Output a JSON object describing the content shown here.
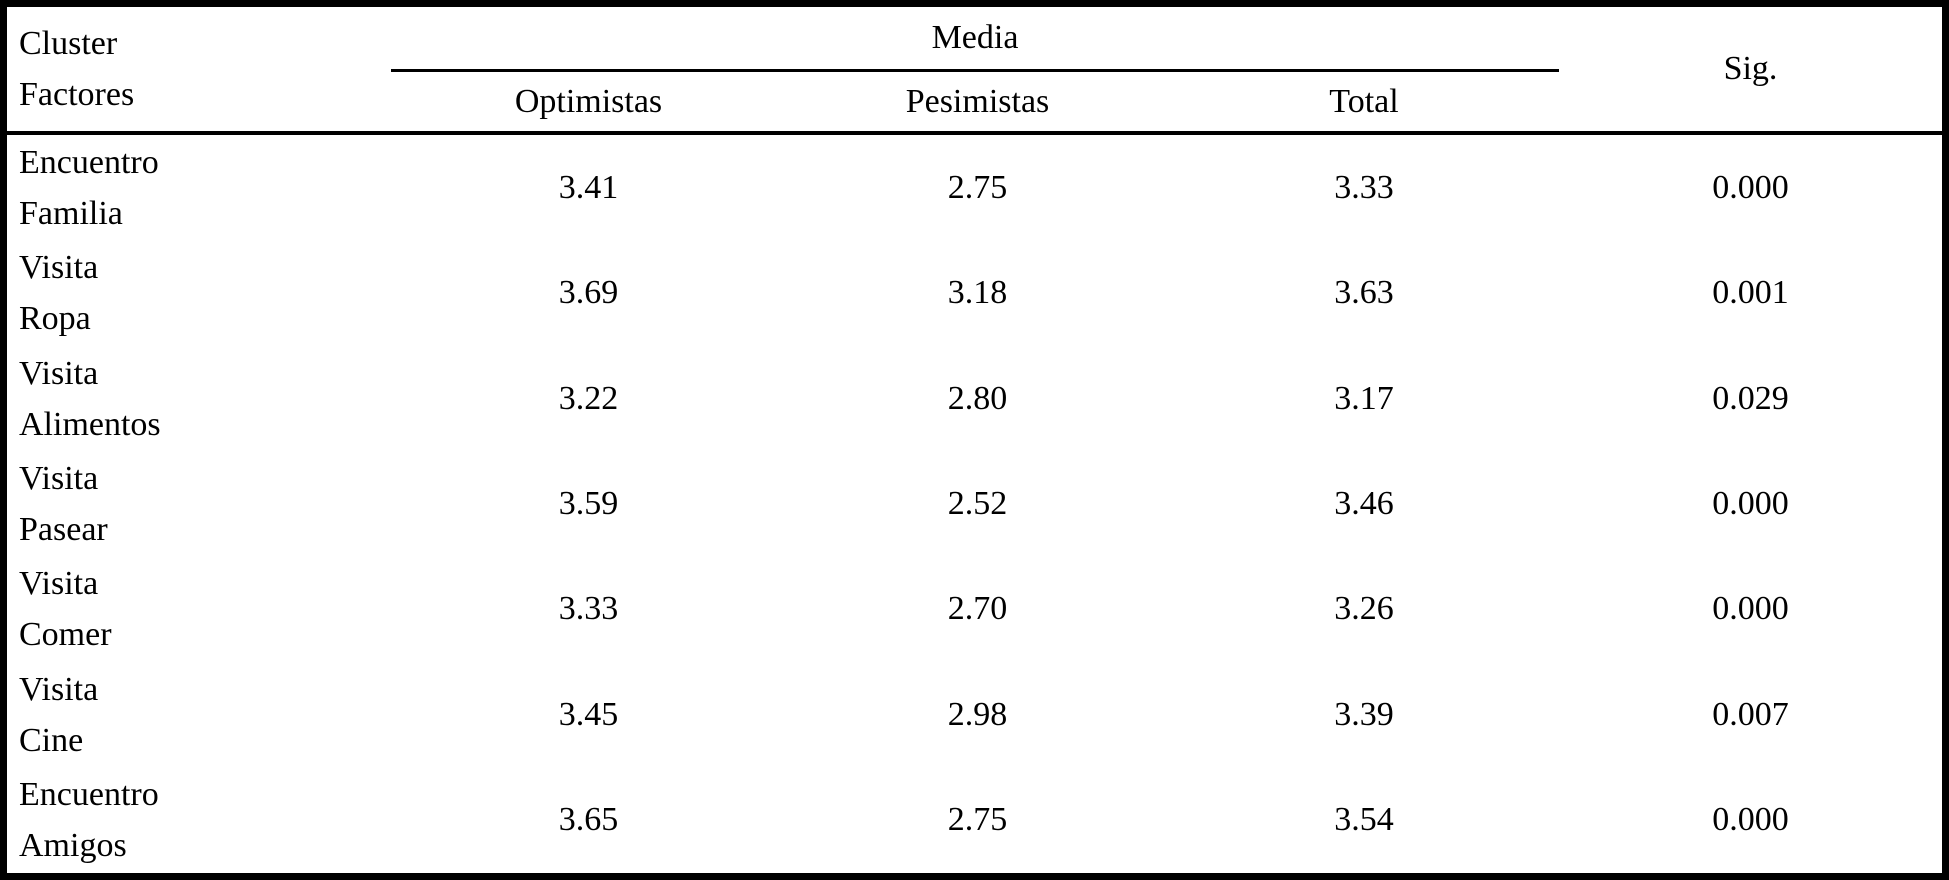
{
  "table": {
    "header": {
      "row_header_line1": "Cluster",
      "row_header_line2": "Factores",
      "group_label": "Media",
      "sub_columns": [
        "Optimistas",
        "Pesimistas",
        "Total"
      ],
      "sig_label": "Sig."
    },
    "rows": [
      {
        "factor": [
          "Encuentro",
          "Familia"
        ],
        "optimistas": "3.41",
        "pesimistas": "2.75",
        "total": "3.33",
        "sig": "0.000"
      },
      {
        "factor": [
          "Visita",
          "Ropa"
        ],
        "optimistas": "3.69",
        "pesimistas": "3.18",
        "total": "3.63",
        "sig": "0.001"
      },
      {
        "factor": [
          "Visita",
          "Alimentos"
        ],
        "optimistas": "3.22",
        "pesimistas": "2.80",
        "total": "3.17",
        "sig": "0.029"
      },
      {
        "factor": [
          "Visita",
          "Pasear"
        ],
        "optimistas": "3.59",
        "pesimistas": "2.52",
        "total": "3.46",
        "sig": "0.000"
      },
      {
        "factor": [
          "Visita",
          "Comer"
        ],
        "optimistas": "3.33",
        "pesimistas": "2.70",
        "total": "3.26",
        "sig": "0.000"
      },
      {
        "factor": [
          "Visita",
          "Cine"
        ],
        "optimistas": "3.45",
        "pesimistas": "2.98",
        "total": "3.39",
        "sig": "0.007"
      },
      {
        "factor": [
          "Encuentro",
          "Amigos"
        ],
        "optimistas": "3.65",
        "pesimistas": "2.75",
        "total": "3.54",
        "sig": "0.000"
      }
    ],
    "colors": {
      "border": "#000000",
      "text": "#000000",
      "background": "#ffffff"
    }
  }
}
